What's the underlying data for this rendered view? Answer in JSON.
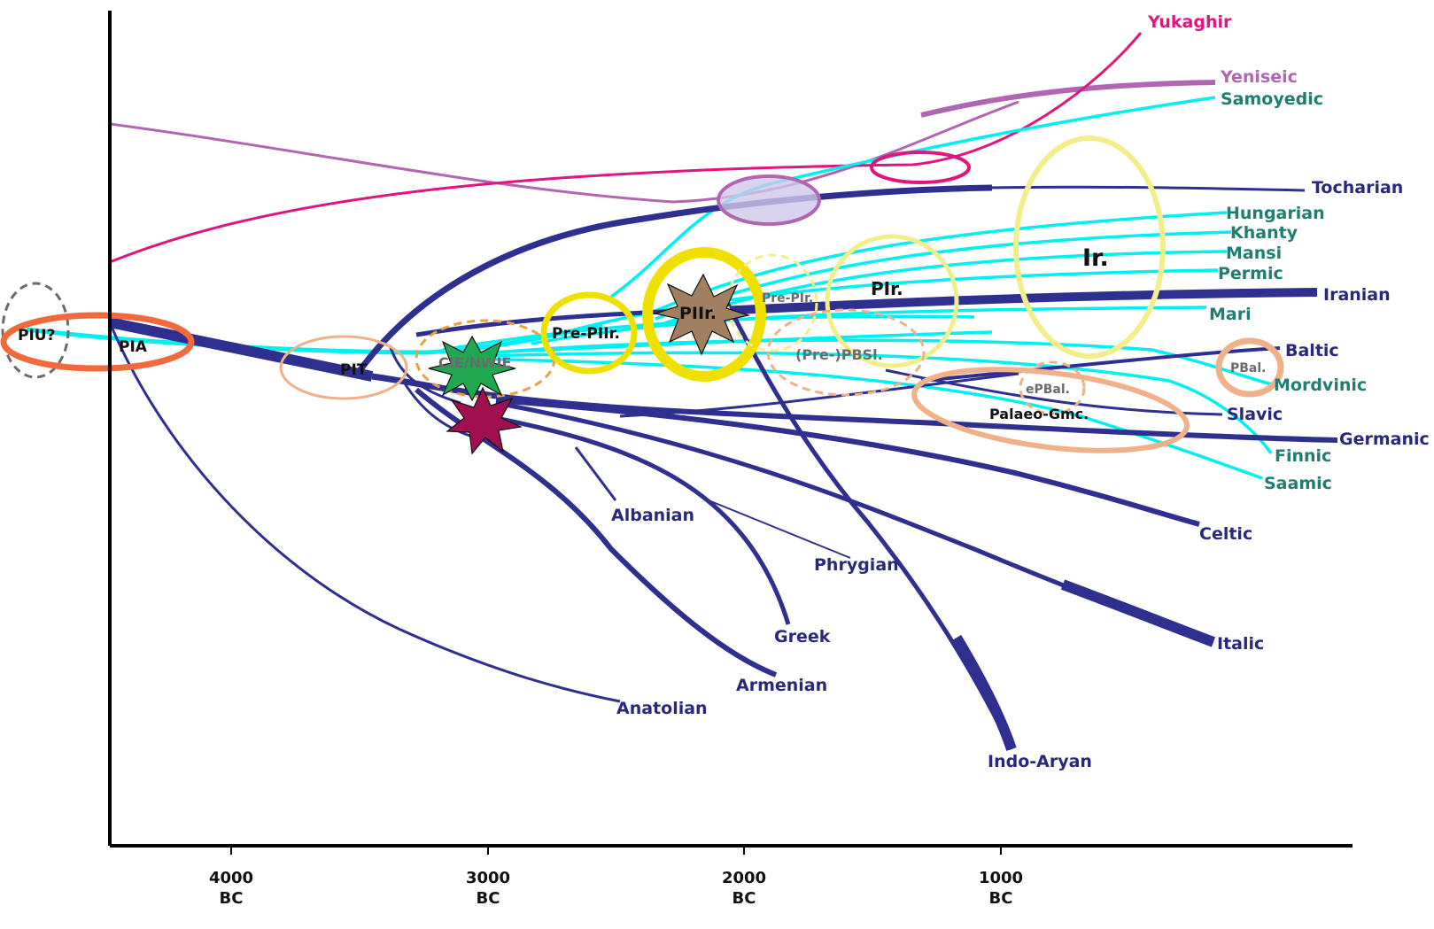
{
  "colors": {
    "indo_european": "#2f2f8f",
    "uralic": "#00f0f0",
    "yukaghir": "#e0157d",
    "yeniseic": "#b066b0",
    "ie_text": "#28287e",
    "uralic_text": "#1f7d72",
    "orange_ring": "#f26a3c",
    "peach_ring": "#f0b088",
    "yellow_ring": "#f0e000",
    "pale_yellow_ring": "#f2ee8a"
  },
  "axis": {
    "ticks": [
      {
        "year": "4000",
        "era": "BC"
      },
      {
        "year": "3000",
        "era": "BC"
      },
      {
        "year": "2000",
        "era": "BC"
      },
      {
        "year": "1000",
        "era": "BC"
      }
    ]
  },
  "nodes": {
    "piu": "PIU?",
    "pia": "PIA",
    "pit": "PIT",
    "cie": "CIE/NWIE",
    "pre_piir": "Pre-PIIr.",
    "piir": "PIIr.",
    "pre_pir": "Pre-PIr.",
    "pir": "PIr.",
    "pre_pbsl": "(Pre-)PBSl.",
    "ir": "Ir.",
    "epbal": "ePBal.",
    "pbal": "PBal.",
    "palaeo_gmc": "Palaeo-Gmc."
  },
  "branches": {
    "yukaghir": "Yukaghir",
    "yeniseic": "Yeniseic",
    "samoyedic": "Samoyedic",
    "tocharian": "Tocharian",
    "hungarian": "Hungarian",
    "khanty": "Khanty",
    "mansi": "Mansi",
    "permic": "Permic",
    "iranian": "Iranian",
    "mari": "Mari",
    "baltic": "Baltic",
    "mordvinic": "Mordvinic",
    "slavic": "Slavic",
    "germanic": "Germanic",
    "finnic": "Finnic",
    "saamic": "Saamic",
    "celtic": "Celtic",
    "italic": "Italic",
    "albanian": "Albanian",
    "phrygian": "Phrygian",
    "greek": "Greek",
    "armenian": "Armenian",
    "anatolian": "Anatolian",
    "indo_aryan": "Indo-Aryan"
  }
}
